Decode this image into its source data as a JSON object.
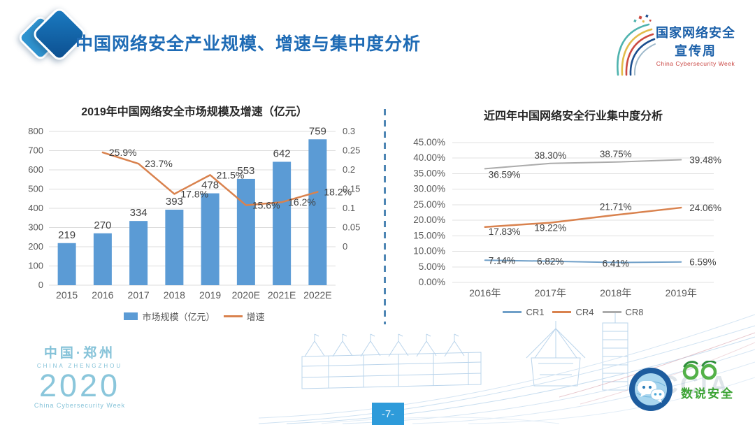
{
  "header": {
    "title": "中国网络安全产业规模、增速与集中度分析",
    "event_logo": {
      "line1": "国家网络安全",
      "line2": "宣传周",
      "subtitle": "China Cybersecurity Week"
    }
  },
  "chart_data": [
    {
      "type": "bar+line",
      "title": "2019年中国网络安全市场规模及增速（亿元）",
      "categories": [
        "2015",
        "2016",
        "2017",
        "2018",
        "2019",
        "2020E",
        "2021E",
        "2022E"
      ],
      "series": [
        {
          "name": "市场规模（亿元）",
          "type": "bar",
          "axis": "left",
          "color": "#5B9BD5",
          "values": [
            219,
            270,
            334,
            393,
            478,
            553,
            642,
            759
          ]
        },
        {
          "name": "增速",
          "type": "line",
          "axis": "right",
          "color": "#D9824E",
          "values": [
            null,
            0.259,
            0.237,
            0.178,
            0.215,
            0.156,
            0.162,
            0.182
          ],
          "point_labels": [
            "",
            "25.9%",
            "23.7%",
            "17.8%",
            "21.5%",
            "15.6%",
            "16.2%",
            "18.2%"
          ]
        }
      ],
      "left_axis": {
        "min": 0,
        "max": 800,
        "step": 100,
        "tick_labels": [
          "800",
          "700",
          "600",
          "500",
          "400",
          "300",
          "200",
          "100",
          "0"
        ]
      },
      "right_axis": {
        "min": 0,
        "max": 0.3,
        "step": 0.05,
        "tick_labels": [
          "0.3",
          "0.25",
          "0.2",
          "0.15",
          "0.1",
          "0.05",
          "0"
        ]
      },
      "grid": true,
      "legend_position": "bottom"
    },
    {
      "type": "line",
      "title": "近四年中国网络安全行业集中度分析",
      "categories": [
        "2016年",
        "2017年",
        "2018年",
        "2019年"
      ],
      "series": [
        {
          "name": "CR1",
          "color": "#6F9FC8",
          "values": [
            7.14,
            6.82,
            6.41,
            6.59
          ],
          "point_labels": [
            "7.14%",
            "6.82%",
            "6.41%",
            "6.59%"
          ]
        },
        {
          "name": "CR4",
          "color": "#D9824E",
          "values": [
            17.83,
            19.22,
            21.71,
            24.06
          ],
          "point_labels": [
            "17.83%",
            "19.22%",
            "21.71%",
            "24.06%"
          ]
        },
        {
          "name": "CR8",
          "color": "#ABABAB",
          "values": [
            36.59,
            38.3,
            38.75,
            39.48
          ],
          "point_labels": [
            "36.59%",
            "38.30%",
            "38.75%",
            "39.48%"
          ]
        }
      ],
      "y_axis": {
        "min": 0,
        "max": 45,
        "step": 5,
        "tick_labels": [
          "45.00%",
          "40.00%",
          "35.00%",
          "30.00%",
          "25.00%",
          "20.00%",
          "15.00%",
          "10.00%",
          "5.00%",
          "0.00%"
        ]
      },
      "grid": true,
      "legend_position": "bottom"
    }
  ],
  "footer": {
    "host_logo": {
      "cn": "中国·郑州",
      "en": "CHINA ZHENGZHOU",
      "year": "2020",
      "week": "China Cybersecurity Week"
    },
    "page_number": "-7-",
    "right_logo": {
      "name": "数说安全",
      "watermark": "CCIA"
    }
  }
}
